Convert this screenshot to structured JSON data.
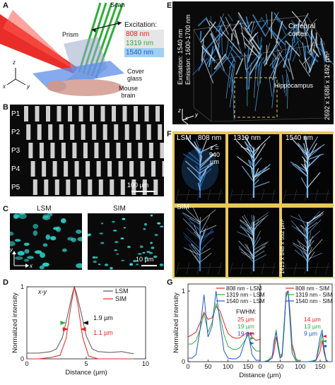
{
  "panels": {
    "A": {
      "letter": "A",
      "scan": "Scan",
      "prism": "Prism",
      "cover_glass": "Cover\nglass",
      "mouse_brain": "Mouse\nbrain",
      "excitation_title": "Excitation:",
      "wavelengths": [
        {
          "label": "808 nm",
          "color": "#e8231f"
        },
        {
          "label": "1319 nm",
          "color": "#2fae3b"
        },
        {
          "label": "1540 nm",
          "color": "#2255d6"
        }
      ],
      "axes": {
        "z": "z",
        "y": "y",
        "x": "x"
      }
    },
    "B": {
      "letter": "B",
      "rows": [
        "P1",
        "P2",
        "P3",
        "P4",
        "P5"
      ],
      "scalebar": "100 µm"
    },
    "C": {
      "letter": "C",
      "left_label": "LSM",
      "right_label": "SIM",
      "axis_y": "y",
      "axis_x": "x",
      "scalebar": "10 µm"
    },
    "D": {
      "letter": "D",
      "plane": "x-y",
      "legend": [
        {
          "label": "LSM",
          "color": "#555555"
        },
        {
          "label": "SIM",
          "color": "#e8231f"
        }
      ],
      "annotations": [
        {
          "text": "1.9 µm",
          "color": "#111111"
        },
        {
          "text": "1.1 µm",
          "color": "#e8231f"
        }
      ]
    },
    "E": {
      "letter": "E",
      "side_text": "Excitation: 1540 nm\nEmission: 1600-1700 nm",
      "cortex": "Cerebral\ncortex",
      "hippocampus": "Hippocampus",
      "volume": "2692 x 1686 x 1492 µm³",
      "axes": {
        "z": "z",
        "y": "y",
        "x": "x"
      }
    },
    "F": {
      "letter": "F",
      "row_labels": [
        "LSM",
        "SIM"
      ],
      "columns": [
        "808 nm",
        "1319 nm",
        "1540 nm"
      ],
      "depth": "z =\n940\nµm",
      "volume": "1415 x 848 x 552 µm³"
    },
    "G": {
      "letter": "G",
      "left_legend": [
        {
          "label": "808 nm - LSM",
          "color": "#e8231f"
        },
        {
          "label": "1319 nm - LSM",
          "color": "#2fae3b"
        },
        {
          "label": "1540 nm - LSM",
          "color": "#2255d6"
        }
      ],
      "right_legend": [
        {
          "label": "808 nm - SIM",
          "color": "#e8231f"
        },
        {
          "label": "1319 nm - SIM",
          "color": "#2fae3b"
        },
        {
          "label": "1540 nm - SIM",
          "color": "#2255d6"
        }
      ],
      "fwhm_title": "FWHM:",
      "left_fwhm": [
        {
          "text": "25 µm",
          "color": "#e8231f"
        },
        {
          "text": "19 µm",
          "color": "#2fae3b"
        },
        {
          "text": "19 µm",
          "color": "#2255d6"
        }
      ],
      "right_fwhm": [
        {
          "text": "14 µm",
          "color": "#e8231f"
        },
        {
          "text": "13 µm",
          "color": "#2fae3b"
        },
        {
          "text": "9 µm",
          "color": "#2255d6"
        }
      ]
    }
  },
  "chart_data": [
    {
      "type": "line",
      "panel": "D",
      "xlabel": "Distance (µm)",
      "ylabel": "Normalized intensity",
      "xlim": [
        0,
        10
      ],
      "ylim": [
        0,
        1
      ],
      "xticks": [
        0,
        5,
        10
      ],
      "yticks": [
        0,
        1
      ],
      "series": [
        {
          "name": "LSM",
          "color": "#555555",
          "x": [
            0,
            1,
            2,
            2.5,
            3,
            3.4,
            3.8,
            4.0,
            4.2,
            4.6,
            5.0,
            5.5,
            6,
            7,
            8,
            9
          ],
          "y": [
            0.08,
            0.08,
            0.1,
            0.14,
            0.3,
            0.58,
            0.88,
            1.0,
            0.9,
            0.62,
            0.32,
            0.14,
            0.1,
            0.09,
            0.1,
            0.07
          ]
        },
        {
          "name": "SIM",
          "color": "#e8231f",
          "x": [
            0,
            1,
            2,
            2.8,
            3.3,
            3.7,
            4.0,
            4.3,
            4.7,
            5.2,
            6,
            7,
            8,
            9
          ],
          "y": [
            0.0,
            0.0,
            0.02,
            0.05,
            0.28,
            0.72,
            1.0,
            0.75,
            0.3,
            0.04,
            0.0,
            0.0,
            0.0,
            0.0
          ]
        }
      ]
    },
    {
      "type": "line",
      "panel": "G-left",
      "xlabel": "Distance (µm)",
      "ylabel": "Normalized intensity",
      "xlim": [
        0,
        180
      ],
      "ylim": [
        0,
        1.1
      ],
      "xticks": [
        0,
        50,
        100,
        150
      ],
      "yticks": [
        0,
        1
      ],
      "series": [
        {
          "name": "808 nm - LSM",
          "color": "#e8231f",
          "x": [
            0,
            10,
            20,
            30,
            40,
            50,
            60,
            70,
            80,
            90,
            100,
            110,
            120,
            130,
            140,
            150,
            160,
            170,
            180
          ],
          "y": [
            0.35,
            0.38,
            0.42,
            0.55,
            0.7,
            0.6,
            0.62,
            0.78,
            0.72,
            0.55,
            0.4,
            0.35,
            0.33,
            0.34,
            0.38,
            0.42,
            0.35,
            0.3,
            0.32
          ]
        },
        {
          "name": "1319 nm - LSM",
          "color": "#2fae3b",
          "x": [
            0,
            10,
            20,
            30,
            40,
            50,
            60,
            70,
            80,
            90,
            100,
            110,
            120,
            130,
            140,
            150,
            160,
            170,
            180
          ],
          "y": [
            0.25,
            0.25,
            0.3,
            0.45,
            0.68,
            0.42,
            0.55,
            0.82,
            0.65,
            0.38,
            0.22,
            0.18,
            0.17,
            0.2,
            0.28,
            0.38,
            0.22,
            0.15,
            0.15
          ]
        },
        {
          "name": "1540 nm - LSM",
          "color": "#2255d6",
          "x": [
            0,
            10,
            20,
            30,
            40,
            50,
            60,
            70,
            80,
            90,
            100,
            110,
            120,
            130,
            140,
            150,
            160,
            170,
            180
          ],
          "y": [
            0.05,
            0.05,
            0.1,
            0.45,
            0.95,
            0.35,
            0.5,
            1.0,
            0.55,
            0.15,
            0.05,
            0.04,
            0.04,
            0.08,
            0.25,
            0.42,
            0.1,
            0.02,
            0.02
          ]
        }
      ]
    },
    {
      "type": "line",
      "panel": "G-right",
      "xlabel": "Distance (µm)",
      "ylabel": "",
      "xlim": [
        0,
        180
      ],
      "ylim": [
        0,
        1.1
      ],
      "xticks": [
        0,
        50,
        100,
        150
      ],
      "yticks": [],
      "series": [
        {
          "name": "808 nm - SIM",
          "color": "#e8231f",
          "x": [
            0,
            10,
            20,
            30,
            35,
            40,
            45,
            50,
            55,
            60,
            65,
            70,
            75,
            80,
            90,
            100,
            110,
            120,
            130,
            140,
            150,
            155,
            160,
            165,
            170,
            180
          ],
          "y": [
            0.0,
            0.0,
            0.02,
            0.05,
            0.15,
            0.35,
            0.2,
            0.05,
            0.1,
            0.5,
            0.92,
            1.0,
            0.7,
            0.25,
            0.04,
            0.0,
            0.0,
            0.0,
            0.01,
            0.02,
            0.15,
            0.3,
            0.12,
            0.02,
            0.0,
            0.0
          ]
        },
        {
          "name": "1319 nm - SIM",
          "color": "#2fae3b",
          "x": [
            0,
            10,
            20,
            30,
            35,
            40,
            45,
            50,
            55,
            60,
            65,
            70,
            75,
            80,
            90,
            100,
            110,
            120,
            130,
            140,
            150,
            155,
            160,
            165,
            170,
            180
          ],
          "y": [
            0.0,
            0.0,
            0.02,
            0.08,
            0.25,
            0.45,
            0.25,
            0.08,
            0.12,
            0.55,
            0.95,
            1.0,
            0.65,
            0.2,
            0.03,
            0.0,
            0.0,
            0.0,
            0.01,
            0.03,
            0.25,
            0.4,
            0.18,
            0.03,
            0.0,
            0.0
          ]
        },
        {
          "name": "1540 nm - SIM",
          "color": "#2255d6",
          "x": [
            0,
            10,
            20,
            30,
            35,
            40,
            45,
            50,
            55,
            60,
            65,
            70,
            75,
            80,
            90,
            100,
            110,
            120,
            130,
            140,
            150,
            155,
            160,
            165,
            170,
            180
          ],
          "y": [
            0.0,
            0.0,
            0.01,
            0.05,
            0.3,
            0.42,
            0.2,
            0.05,
            0.08,
            0.45,
            0.98,
            1.0,
            0.55,
            0.12,
            0.01,
            0.0,
            0.0,
            0.0,
            0.0,
            0.02,
            0.35,
            0.45,
            0.15,
            0.01,
            0.0,
            0.0
          ]
        }
      ]
    }
  ]
}
